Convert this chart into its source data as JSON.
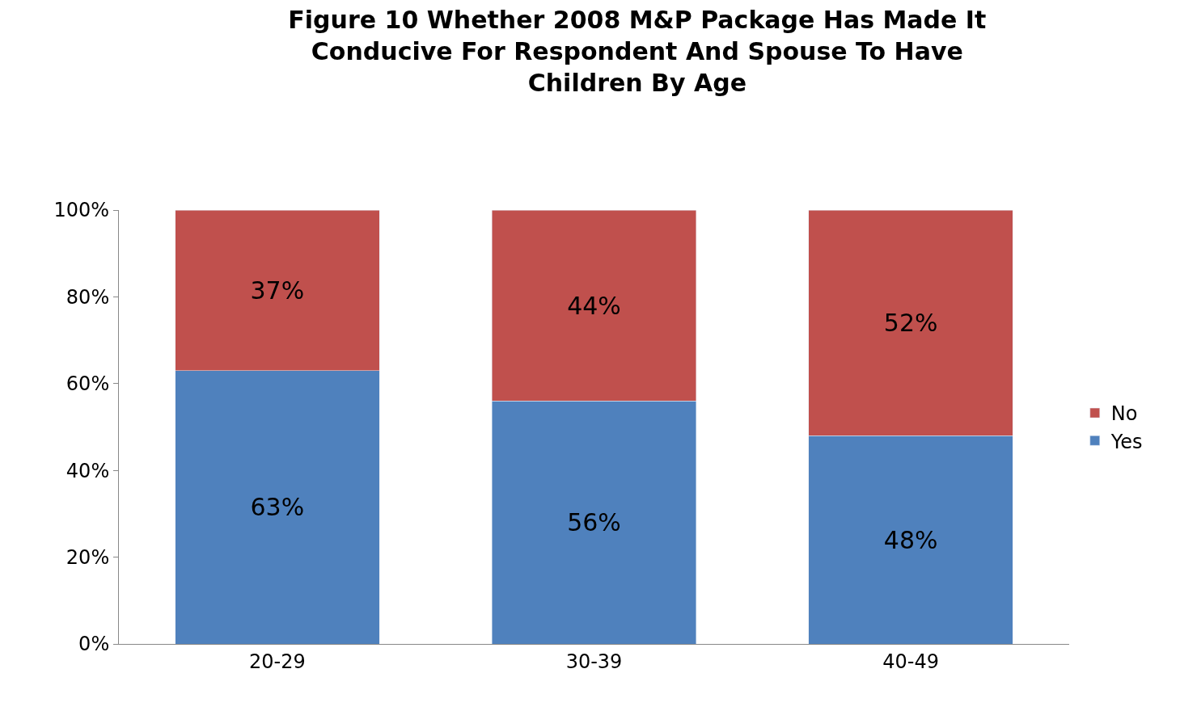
{
  "chart_data": {
    "type": "bar",
    "stacked": true,
    "title": "Figure 10 Whether 2008 M&P Package Has Made It Conducive For Respondent And Spouse To Have Children By Age",
    "categories": [
      "20-29",
      "30-39",
      "40-49"
    ],
    "series": [
      {
        "name": "Yes",
        "color": "#4f81bd",
        "values": [
          63,
          56,
          48
        ],
        "value_labels": [
          "63%",
          "56%",
          "48%"
        ]
      },
      {
        "name": "No",
        "color": "#c0504d",
        "values": [
          37,
          44,
          52
        ],
        "value_labels": [
          "37%",
          "44%",
          "52%"
        ]
      }
    ],
    "ylim": [
      0,
      100
    ],
    "yticks": [
      {
        "value": 0,
        "label": "0%"
      },
      {
        "value": 20,
        "label": "20%"
      },
      {
        "value": 40,
        "label": "40%"
      },
      {
        "value": 60,
        "label": "60%"
      },
      {
        "value": 80,
        "label": "80%"
      },
      {
        "value": 100,
        "label": "100%"
      }
    ],
    "legend": "right"
  }
}
